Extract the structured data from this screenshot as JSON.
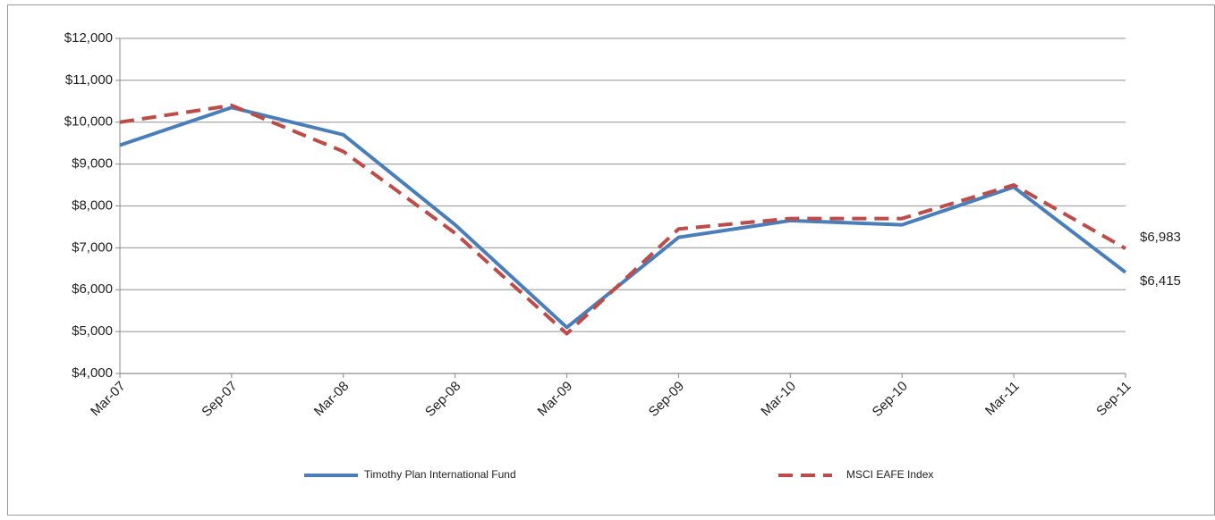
{
  "chart_data": {
    "type": "line",
    "categories": [
      "Mar-07",
      "Sep-07",
      "Mar-08",
      "Sep-08",
      "Mar-09",
      "Sep-09",
      "Mar-10",
      "Sep-10",
      "Mar-11",
      "Sep-11"
    ],
    "series": [
      {
        "name": "Timothy Plan International Fund",
        "color": "#4a7ebb",
        "dash": false,
        "values": [
          9450,
          10350,
          9700,
          7550,
          5100,
          7250,
          7650,
          7550,
          8450,
          6415
        ],
        "value_labels": [
          null,
          null,
          null,
          null,
          null,
          null,
          null,
          null,
          null,
          "$6,415"
        ]
      },
      {
        "name": "MSCI EAFE Index",
        "color": "#be4b48",
        "dash": true,
        "values": [
          10000,
          10400,
          9300,
          7350,
          4950,
          7450,
          7700,
          7700,
          8500,
          6983
        ],
        "value_labels": [
          null,
          null,
          null,
          null,
          null,
          null,
          null,
          null,
          null,
          "$6,983"
        ]
      }
    ],
    "ylim": [
      4000,
      12000
    ],
    "yticks": [
      {
        "value": 4000,
        "label": "$4,000"
      },
      {
        "value": 5000,
        "label": "$5,000"
      },
      {
        "value": 6000,
        "label": "$6,000"
      },
      {
        "value": 7000,
        "label": "$7,000"
      },
      {
        "value": 8000,
        "label": "$8,000"
      },
      {
        "value": 9000,
        "label": "$9,000"
      },
      {
        "value": 10000,
        "label": "$10,000"
      },
      {
        "value": 11000,
        "label": "$11,000"
      },
      {
        "value": 12000,
        "label": "$12,000"
      }
    ],
    "grid": true,
    "legend": "bottom"
  }
}
